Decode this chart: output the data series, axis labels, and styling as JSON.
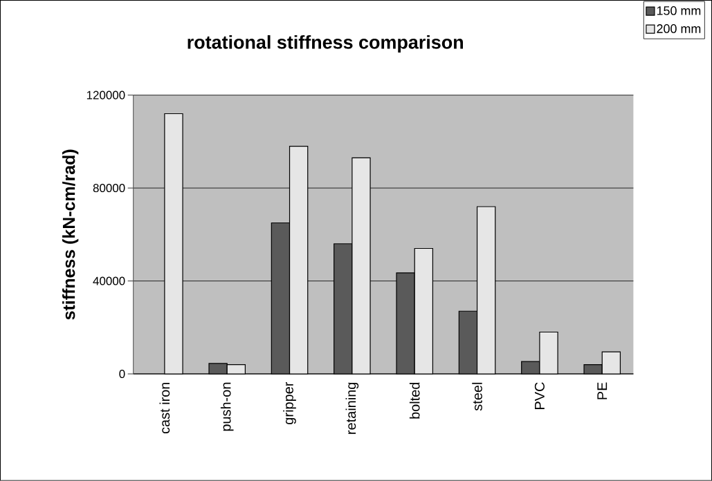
{
  "chart_data": {
    "type": "bar",
    "title": "rotational stiffness comparison",
    "ylabel": "stiffness (kN-cm/rad)",
    "categories": [
      "cast iron",
      "push-on",
      "gripper",
      "retaining",
      "bolted",
      "steel",
      "PVC",
      "PE"
    ],
    "series": [
      {
        "name": "150 mm",
        "color": "#5a5a5a",
        "values": [
          null,
          4500,
          65000,
          56000,
          43500,
          27000,
          5300,
          4000
        ]
      },
      {
        "name": "200 mm",
        "color": "#e6e6e6",
        "values": [
          112000,
          4000,
          98000,
          93000,
          54000,
          72000,
          18000,
          9500
        ]
      }
    ],
    "ylim": [
      0,
      120000
    ],
    "yticks": [
      0,
      40000,
      80000,
      120000
    ],
    "grid": "y",
    "legend": "top right"
  }
}
